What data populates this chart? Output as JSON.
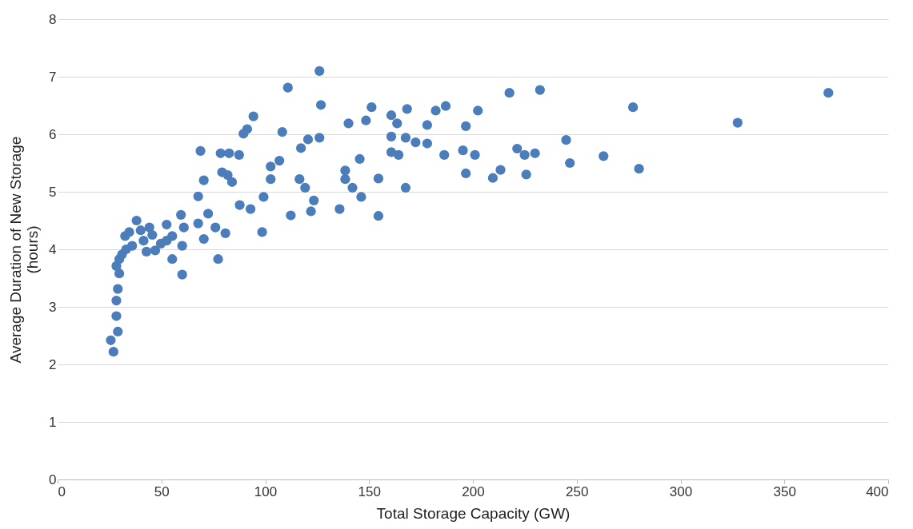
{
  "chart_data": {
    "type": "scatter",
    "xlabel": "Total Storage Capacity (GW)",
    "ylabel": "Average Duration of New Storage (hours)",
    "xlim": [
      0,
      400
    ],
    "xticks": [
      0,
      50,
      100,
      150,
      200,
      250,
      300,
      350,
      400
    ],
    "ylim": [
      0,
      8
    ],
    "yticks": [
      0,
      1,
      2,
      3,
      4,
      5,
      6,
      7,
      8
    ],
    "grid": "y",
    "marker": "circle",
    "series": [
      {
        "color": "#4a7dba",
        "x": [
          26.9,
          25.6,
          29,
          28.3,
          28.3,
          29,
          29.7,
          28.3,
          29.7,
          32.5,
          38,
          35.9,
          41.4,
          44.2,
          47,
          52.5,
          55.2,
          55.2,
          60,
          60,
          59.4,
          60.8,
          67.7,
          70.4,
          72.5,
          76,
          80.8,
          77.3,
          67.7,
          70.4,
          87.7,
          45.6,
          33,
          40,
          49.7,
          31,
          34.5,
          42.8,
          52.5,
          68.8,
          78.5,
          82.6,
          87.4,
          79.2,
          81.9,
          84,
          89.5,
          91.3,
          94.3,
          92.9,
          99.2,
          98.5,
          108.2,
          110.9,
          102.6,
          106.8,
          102.6,
          112.3,
          116.5,
          119.2,
          117.2,
          120.6,
          126.1,
          126.1,
          126.8,
          123.4,
          122,
          135.8,
          138.5,
          138.5,
          142,
          146.2,
          145.5,
          140.1,
          148.5,
          151.2,
          154.5,
          154.5,
          160.7,
          163.5,
          160.7,
          168.3,
          167.6,
          160.7,
          164.2,
          172.4,
          178,
          178,
          167.6,
          182.1,
          186.9,
          186.2,
          196.6,
          202.4,
          195.2,
          201,
          196.6,
          209.6,
          213.3,
          217.6,
          232.3,
          221.3,
          224.9,
          229.9,
          225.7,
          244.9,
          246.7,
          262.9,
          277.1,
          280,
          327.5,
          371.2
        ],
        "values": [
          2.22,
          2.42,
          2.57,
          2.84,
          3.11,
          3.31,
          3.58,
          3.71,
          3.83,
          4.23,
          4.5,
          4.06,
          4.15,
          4.38,
          3.98,
          4.43,
          4.23,
          3.83,
          4.06,
          3.56,
          4.6,
          4.38,
          4.45,
          4.18,
          4.62,
          4.38,
          4.28,
          3.83,
          4.92,
          5.2,
          4.77,
          4.25,
          4.0,
          4.33,
          4.1,
          3.91,
          4.3,
          3.96,
          4.15,
          5.71,
          5.67,
          5.67,
          5.64,
          5.34,
          5.29,
          5.17,
          6.01,
          6.09,
          6.31,
          4.7,
          4.91,
          4.3,
          6.04,
          6.81,
          5.44,
          5.54,
          5.22,
          4.59,
          5.22,
          5.07,
          5.76,
          5.91,
          5.94,
          7.1,
          6.51,
          4.85,
          4.66,
          4.7,
          5.37,
          5.22,
          5.07,
          4.91,
          5.57,
          6.19,
          6.24,
          6.47,
          5.23,
          4.58,
          6.33,
          6.19,
          5.96,
          6.44,
          5.94,
          5.69,
          5.64,
          5.86,
          5.84,
          6.16,
          5.07,
          6.41,
          6.49,
          5.64,
          6.14,
          6.41,
          5.72,
          5.64,
          5.32,
          5.24,
          5.38,
          6.72,
          6.77,
          5.75,
          5.64,
          5.67,
          5.3,
          5.9,
          5.5,
          5.62,
          6.47,
          5.4,
          6.2,
          6.72
        ]
      }
    ]
  }
}
